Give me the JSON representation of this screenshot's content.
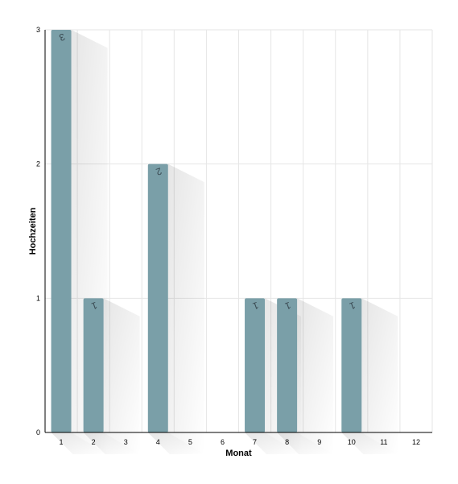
{
  "chart_data": {
    "type": "bar",
    "categories": [
      "1",
      "2",
      "3",
      "4",
      "5",
      "6",
      "7",
      "8",
      "9",
      "10",
      "11",
      "12"
    ],
    "values": [
      3,
      1,
      0,
      2,
      0,
      0,
      1,
      1,
      0,
      1,
      0,
      0
    ],
    "xlabel": "Monat",
    "ylabel": "Hochzeiten",
    "ylim": [
      0,
      3
    ],
    "yticks": [
      "0",
      "1",
      "2",
      "3"
    ],
    "grid": true,
    "bar_color": "#7a9fa8",
    "data_label_color": "#3a4a52",
    "grid_color": "#e6e6e6",
    "axis_color": "#000000"
  }
}
